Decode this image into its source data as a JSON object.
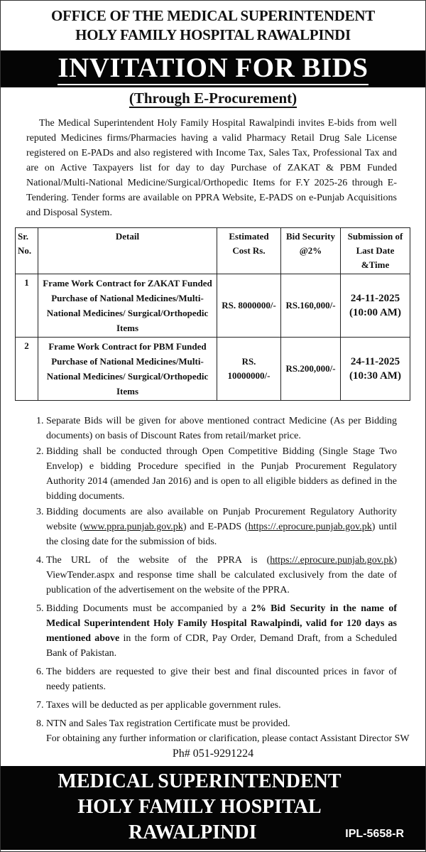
{
  "header": {
    "line1": "OFFICE OF THE MEDICAL SUPERINTENDENT",
    "line2": "HOLY FAMILY HOSPITAL RAWALPINDI",
    "title": "INVITATION FOR BIDS",
    "subtitle": "(Through E-Procurement)"
  },
  "intro": "The Medical Superintendent Holy Family Hospital Rawalpindi invites E-bids from well reputed Medicines firms/Pharmacies having a valid Pharmacy Retail Drug Sale License registered on E-PADs and also registered with Income Tax, Sales Tax, Professional Tax and are on Active Taxpayers list for day to day Purchase of ZAKAT & PBM Funded National/Multi-National Medicine/Surgical/Orthopedic Items for F.Y 2025-26 through E- Tendering. Tender forms are available on PPRA Website, E-PADS on e-Punjab Acquisitions and Disposal System.",
  "table": {
    "headers": [
      "Sr. No.",
      "Detail",
      "Estimated Cost Rs.",
      "Bid Security @2%",
      "Submission of Last Date &Time"
    ],
    "rows": [
      {
        "sr": "1",
        "detail": "Frame Work Contract for ZAKAT Funded Purchase of National Medicines/Multi-National Medicines/ Surgical/Orthopedic Items",
        "cost": "RS. 8000000/-",
        "security": "RS.160,000/-",
        "date": "24-11-2025",
        "time": "(10:00 AM)"
      },
      {
        "sr": "2",
        "detail": "Frame Work Contract for PBM Funded Purchase of National Medicines/Multi-National Medicines/ Surgical/Orthopedic Items",
        "cost": "RS. 10000000/-",
        "security": "RS.200,000/-",
        "date": "24-11-2025",
        "time": "(10:30 AM)"
      }
    ]
  },
  "terms": {
    "t1": "Separate Bids will be given for above mentioned contract Medicine (As per Bidding documents) on basis of Discount Rates from retail/market price.",
    "t2": "Bidding shall be conducted through Open Competitive Bidding (Single Stage Two Envelop) e bidding Procedure specified in the Punjab Procurement Regulatory Authority 2014 (amended Jan 2016) and is open to all eligible bidders as defined in the bidding documents.",
    "t3": {
      "a": "Bidding documents are also available on Punjab Procurement Regulatory Authority website (",
      "link1": "www.ppra.punjab.gov.pk",
      "b": ") and E-PADS (",
      "link2": "https://.eprocure.punjab.gov.pk",
      "c": ") until the closing date for the submission of bids."
    },
    "t4": {
      "a": "The URL of the website of the PPRA is (",
      "link": "https://.eprocure.punjab.gov.pk",
      "b": ") ViewTender.aspx and response time shall be calculated exclusively from the date of publication of the advertisement on the website of the PPRA."
    },
    "t5": {
      "a": "Bidding Documents must be accompanied by a ",
      "bold": "2% Bid Security in the name of Medical Superintendent Holy Family Hospital Rawalpindi, valid for 120 days as mentioned above",
      "b": " in the form of CDR, Pay Order, Demand Draft, from a Scheduled Bank of Pakistan."
    },
    "t6": "The bidders are requested to give their best and final discounted prices in favor of needy patients.",
    "t7": "Taxes will be deducted as per applicable government rules.",
    "t8": "NTN and Sales Tax registration Certificate must be provided."
  },
  "contact": "For obtaining any further information or clarification, please contact Assistant Director SW",
  "phone": "Ph# 051-9291224",
  "footer": {
    "line1": "MEDICAL SUPERINTENDENT",
    "line2": "HOLY FAMILY HOSPITAL",
    "line3": "RAWALPINDI",
    "ref": "IPL-5658-R"
  }
}
